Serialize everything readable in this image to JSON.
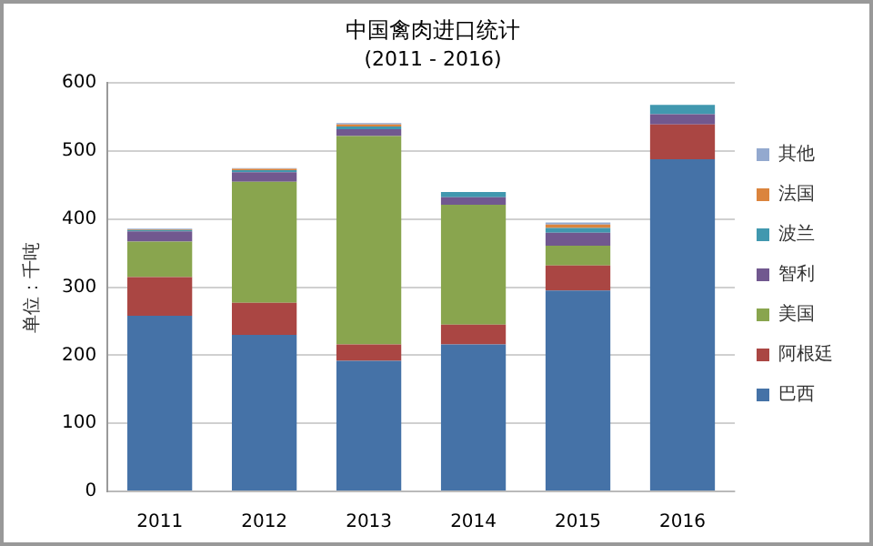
{
  "chart_data": {
    "type": "bar",
    "title": "中国禽肉进口统计",
    "subtitle": "(2011 - 2016)",
    "ylabel": "单位：千吨",
    "categories": [
      "2011",
      "2012",
      "2013",
      "2014",
      "2015",
      "2016"
    ],
    "stacked": true,
    "series": [
      {
        "name": "巴西",
        "color": "#4572a7",
        "values": [
          258,
          230,
          192,
          216,
          295,
          488
        ]
      },
      {
        "name": "阿根廷",
        "color": "#aa4643",
        "values": [
          57,
          47,
          24,
          29,
          37,
          51
        ]
      },
      {
        "name": "美国",
        "color": "#89a54e",
        "values": [
          52,
          178,
          306,
          176,
          29,
          0
        ]
      },
      {
        "name": "智利",
        "color": "#71588f",
        "values": [
          15,
          14,
          10,
          11,
          19,
          15
        ]
      },
      {
        "name": "波兰",
        "color": "#4198af",
        "values": [
          2,
          3,
          4,
          8,
          7,
          14
        ]
      },
      {
        "name": "法国",
        "color": "#db843d",
        "values": [
          1,
          2,
          3,
          0,
          5,
          0
        ]
      },
      {
        "name": "其他",
        "color": "#93a9cf",
        "values": [
          1,
          1,
          2,
          0,
          3,
          0
        ]
      }
    ],
    "ylim": [
      0,
      600
    ],
    "yticks": [
      0,
      100,
      200,
      300,
      400,
      500,
      600
    ],
    "grid": "y",
    "legend": "right"
  }
}
